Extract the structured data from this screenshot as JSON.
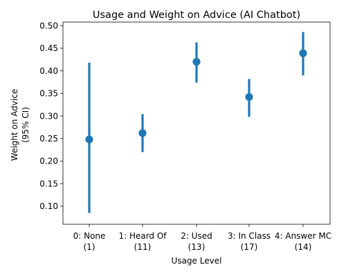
{
  "chart_data": {
    "type": "scatter",
    "title": "Usage and Weight on Advice (AI Chatbot)",
    "xlabel": "Usage Level",
    "ylabel_lines": [
      "Weight on Advice",
      "(95% CI)"
    ],
    "categories": [
      {
        "name": "0: None",
        "n": "(1)"
      },
      {
        "name": "1: Heard Of",
        "n": "(11)"
      },
      {
        "name": "2: Used",
        "n": "(13)"
      },
      {
        "name": "3: In Class",
        "n": "(17)"
      },
      {
        "name": "4: Answer MC",
        "n": "(14)"
      }
    ],
    "points": [
      {
        "mean": 0.248,
        "ci_low": 0.085,
        "ci_high": 0.418
      },
      {
        "mean": 0.262,
        "ci_low": 0.22,
        "ci_high": 0.304
      },
      {
        "mean": 0.42,
        "ci_low": 0.374,
        "ci_high": 0.463
      },
      {
        "mean": 0.342,
        "ci_low": 0.298,
        "ci_high": 0.382
      },
      {
        "mean": 0.439,
        "ci_low": 0.39,
        "ci_high": 0.486
      }
    ],
    "y_ticks": [
      "0.10",
      "0.15",
      "0.20",
      "0.25",
      "0.30",
      "0.35",
      "0.40",
      "0.45",
      "0.50"
    ],
    "ylim": [
      0.06,
      0.508
    ],
    "color": "#1f77b4",
    "grid": false,
    "legend": "none"
  }
}
